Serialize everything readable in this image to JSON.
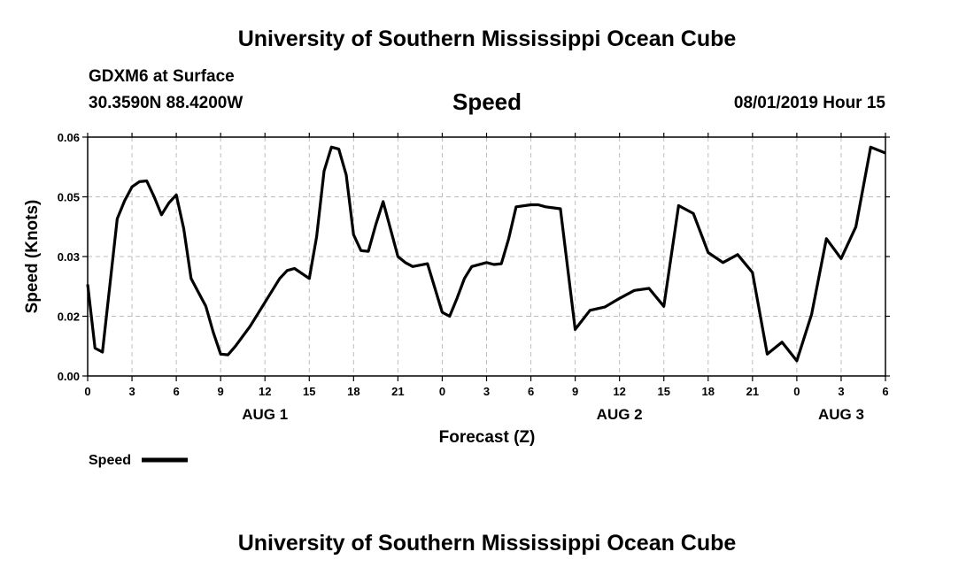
{
  "header": {
    "top_title": "University of Southern Mississippi Ocean Cube",
    "station": "GDXM6 at Surface",
    "location": "30.3590N 88.4200W",
    "parameter": "Speed",
    "datetime": "08/01/2019 Hour 15"
  },
  "footer": {
    "bottom_title": "University of Southern Mississippi Ocean Cube"
  },
  "legend": {
    "label": "Speed",
    "color": "#000000"
  },
  "chart_data": {
    "type": "line",
    "title": "Speed",
    "xlabel": "Forecast (Z)",
    "ylabel": "Speed (Knots)",
    "xlim": [
      0,
      54
    ],
    "ylim": [
      0,
      0.06
    ],
    "grid": true,
    "x_tick_values": [
      0,
      3,
      6,
      9,
      12,
      15,
      18,
      21,
      24,
      27,
      30,
      33,
      36,
      39,
      42,
      45,
      48,
      51,
      54
    ],
    "x_tick_labels": [
      "0",
      "3",
      "6",
      "9",
      "12",
      "15",
      "18",
      "21",
      "0",
      "3",
      "6",
      "9",
      "12",
      "15",
      "18",
      "21",
      "0",
      "3",
      "6"
    ],
    "y_tick_values": [
      0,
      0.015,
      0.03,
      0.045,
      0.06
    ],
    "y_tick_labels": [
      "0.00",
      "0.02",
      "0.03",
      "0.05",
      "0.06"
    ],
    "date_labels": [
      {
        "x": 12,
        "label": "AUG 1"
      },
      {
        "x": 36,
        "label": "AUG 2"
      },
      {
        "x": 51,
        "label": "AUG 3"
      }
    ],
    "series": [
      {
        "name": "Speed",
        "color": "#000000",
        "x": [
          0,
          0.5,
          1,
          2,
          2.5,
          3,
          3.5,
          4,
          4.5,
          5,
          5.5,
          6,
          6.5,
          7,
          7.5,
          8,
          8.5,
          9,
          9.5,
          10,
          11,
          12,
          13,
          13.5,
          14,
          15,
          15.5,
          16,
          16.5,
          17,
          17.5,
          18,
          18.5,
          19,
          19.5,
          20,
          21,
          21.5,
          22,
          23,
          24,
          24.5,
          25,
          25.5,
          26,
          27,
          27.5,
          28,
          28.5,
          29,
          30,
          30.5,
          31,
          32,
          33,
          34,
          35,
          36,
          37,
          38,
          39,
          40,
          41,
          42,
          43,
          44,
          45,
          46,
          47,
          48,
          49,
          50,
          51,
          52,
          53,
          54
        ],
        "y": [
          0.023,
          0.007,
          0.006,
          0.0395,
          0.044,
          0.0475,
          0.0488,
          0.049,
          0.045,
          0.0405,
          0.0435,
          0.0455,
          0.037,
          0.0245,
          0.021,
          0.0175,
          0.011,
          0.0055,
          0.0053,
          0.0075,
          0.0125,
          0.0185,
          0.0245,
          0.0265,
          0.027,
          0.0245,
          0.035,
          0.0515,
          0.0575,
          0.057,
          0.0505,
          0.0355,
          0.0315,
          0.0313,
          0.038,
          0.0438,
          0.03,
          0.0285,
          0.0275,
          0.0282,
          0.016,
          0.015,
          0.0195,
          0.0245,
          0.0275,
          0.0285,
          0.028,
          0.0282,
          0.0345,
          0.0425,
          0.043,
          0.043,
          0.0425,
          0.042,
          0.0117,
          0.0165,
          0.0173,
          0.0195,
          0.0215,
          0.022,
          0.0175,
          0.0428,
          0.0408,
          0.031,
          0.0285,
          0.0305,
          0.026,
          0.0055,
          0.0085,
          0.0038,
          0.0155,
          0.0345,
          0.0295,
          0.0375,
          0.0575,
          0.056
        ]
      }
    ]
  }
}
